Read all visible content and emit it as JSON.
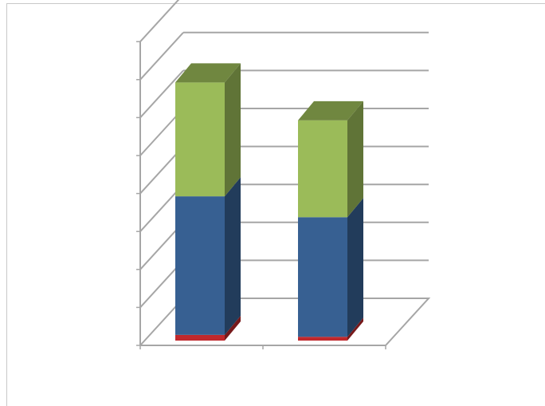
{
  "chart_data": {
    "type": "bar",
    "stacked": true,
    "three_d": true,
    "title": "",
    "xlabel": "",
    "ylabel": "",
    "categories": [
      "",
      ""
    ],
    "ylim": [
      0,
      8
    ],
    "y_ticks": [
      0,
      1,
      2,
      3,
      4,
      5,
      6,
      7,
      8
    ],
    "grid": true,
    "legend": "none",
    "series": [
      {
        "values": [
          0.15,
          0.1
        ],
        "color": "#c0282c"
      },
      {
        "values": [
          3.65,
          3.15
        ],
        "color": "#376092"
      },
      {
        "values": [
          3.0,
          2.55
        ],
        "color": "#9bbb59"
      }
    ]
  }
}
